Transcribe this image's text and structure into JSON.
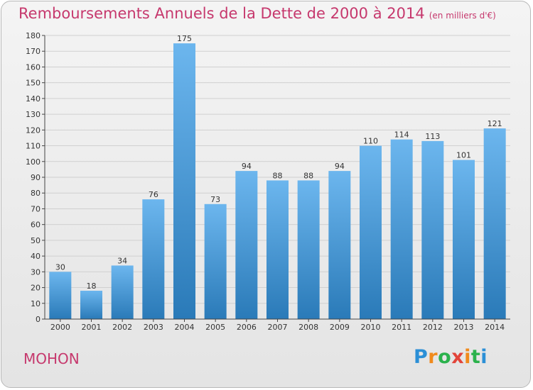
{
  "commune": "MOHON",
  "brand": {
    "letters": [
      "P",
      "r",
      "o",
      "x",
      "i",
      "t",
      "i"
    ],
    "colors": [
      "#2b8fd6",
      "#f08a1c",
      "#2bb24c",
      "#e2443a",
      "#f08a1c",
      "#2bb24c",
      "#2b8fd6"
    ]
  },
  "colors": {
    "title": "#c6386d",
    "bar_light": "#6cb6ee",
    "bar_dark": "#2a7ab8",
    "axis": "#444444",
    "grid": "#d0d0d0"
  },
  "chart_data": {
    "type": "bar",
    "title": "Remboursements Annuels de la Dette de 2000 à 2014",
    "subtitle": "(en milliers d'€)",
    "xlabel": "",
    "ylabel": "",
    "categories": [
      "2000",
      "2001",
      "2002",
      "2003",
      "2004",
      "2005",
      "2006",
      "2007",
      "2008",
      "2009",
      "2010",
      "2011",
      "2012",
      "2013",
      "2014"
    ],
    "values": [
      30,
      18,
      34,
      76,
      175,
      73,
      94,
      88,
      88,
      94,
      110,
      114,
      113,
      101,
      121
    ],
    "ylim": [
      0,
      180
    ],
    "yticks": [
      0,
      10,
      20,
      30,
      40,
      50,
      60,
      70,
      80,
      90,
      100,
      110,
      120,
      130,
      140,
      150,
      160,
      170,
      180
    ],
    "grid": true,
    "legend": "none"
  }
}
